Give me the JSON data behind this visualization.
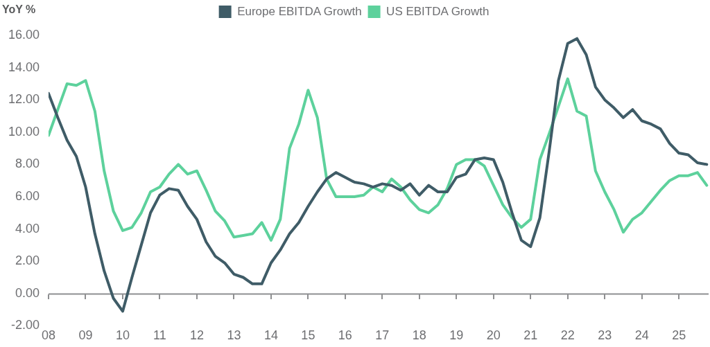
{
  "chart_data": {
    "type": "line",
    "ylabel": "YoY %",
    "x": [
      2008,
      2008.25,
      2008.5,
      2008.75,
      2009,
      2009.25,
      2009.5,
      2009.75,
      2010,
      2010.25,
      2010.5,
      2010.75,
      2011,
      2011.25,
      2011.5,
      2011.75,
      2012,
      2012.25,
      2012.5,
      2012.75,
      2013,
      2013.25,
      2013.5,
      2013.75,
      2014,
      2014.25,
      2014.5,
      2014.75,
      2015,
      2015.25,
      2015.5,
      2015.75,
      2016,
      2016.25,
      2016.5,
      2016.75,
      2017,
      2017.25,
      2017.5,
      2017.75,
      2018,
      2018.25,
      2018.5,
      2018.75,
      2019,
      2019.25,
      2019.5,
      2019.75,
      2020,
      2020.25,
      2020.5,
      2020.75,
      2021,
      2021.25,
      2021.5,
      2021.75,
      2022,
      2022.25,
      2022.5,
      2022.75,
      2023,
      2023.25,
      2023.5,
      2023.75,
      2024,
      2024.25,
      2024.5,
      2024.75,
      2025,
      2025.25,
      2025.5,
      2025.75
    ],
    "series": [
      {
        "name": "Europe EBITDA Growth",
        "color": "#3f5c67",
        "values": [
          12.4,
          10.9,
          9.5,
          8.5,
          6.6,
          3.7,
          1.4,
          -0.3,
          -1.1,
          1.0,
          3.0,
          5.0,
          6.1,
          6.5,
          6.4,
          5.4,
          4.6,
          3.2,
          2.3,
          1.9,
          1.2,
          1.0,
          0.6,
          0.6,
          1.9,
          2.7,
          3.7,
          4.4,
          5.4,
          6.3,
          7.1,
          7.5,
          7.2,
          6.9,
          6.8,
          6.6,
          6.8,
          6.7,
          6.4,
          6.8,
          6.1,
          6.7,
          6.3,
          6.3,
          7.2,
          7.4,
          8.3,
          8.4,
          8.3,
          6.9,
          5.0,
          3.3,
          2.9,
          4.7,
          8.8,
          13.2,
          15.5,
          15.8,
          14.8,
          12.8,
          12.0,
          11.5,
          10.9,
          11.4,
          10.7,
          10.5,
          10.2,
          9.3,
          8.7,
          8.6,
          8.1,
          8.0
        ]
      },
      {
        "name": "US EBITDA Growth",
        "color": "#5dd19c",
        "values": [
          9.8,
          11.4,
          13.0,
          12.9,
          13.2,
          11.3,
          7.6,
          5.1,
          3.9,
          4.1,
          5.0,
          6.3,
          6.6,
          7.4,
          8.0,
          7.4,
          7.6,
          6.4,
          5.1,
          4.5,
          3.5,
          3.6,
          3.7,
          4.4,
          3.3,
          4.6,
          9.0,
          10.5,
          12.6,
          10.9,
          7.1,
          6.0,
          6.0,
          6.0,
          6.1,
          6.6,
          6.3,
          7.1,
          6.6,
          5.8,
          5.2,
          5.0,
          5.5,
          6.5,
          8.0,
          8.3,
          8.3,
          7.9,
          6.7,
          5.5,
          4.7,
          4.1,
          4.6,
          8.3,
          9.9,
          11.6,
          13.3,
          11.3,
          11.0,
          7.6,
          6.3,
          5.2,
          3.8,
          4.6,
          5.0,
          5.7,
          6.4,
          7.0,
          7.3,
          7.3,
          7.5,
          6.7
        ]
      }
    ],
    "xlim": [
      2008,
      2025.8
    ],
    "xticks": [
      {
        "value": 2008,
        "label": "08"
      },
      {
        "value": 2009,
        "label": "09"
      },
      {
        "value": 2010,
        "label": "10"
      },
      {
        "value": 2011,
        "label": "11"
      },
      {
        "value": 2012,
        "label": "12"
      },
      {
        "value": 2013,
        "label": "13"
      },
      {
        "value": 2014,
        "label": "14"
      },
      {
        "value": 2015,
        "label": "15"
      },
      {
        "value": 2016,
        "label": "16"
      },
      {
        "value": 2017,
        "label": "17"
      },
      {
        "value": 2018,
        "label": "18"
      },
      {
        "value": 2019,
        "label": "19"
      },
      {
        "value": 2020,
        "label": "20"
      },
      {
        "value": 2021,
        "label": "21"
      },
      {
        "value": 2022,
        "label": "22"
      },
      {
        "value": 2023,
        "label": "23"
      },
      {
        "value": 2024,
        "label": "24"
      },
      {
        "value": 2025,
        "label": "25"
      }
    ],
    "ylim": [
      -2,
      16
    ],
    "yticks": [
      {
        "value": -2,
        "label": "-2.00"
      },
      {
        "value": 0,
        "label": "0.00"
      },
      {
        "value": 2,
        "label": "2.00"
      },
      {
        "value": 4,
        "label": "4.00"
      },
      {
        "value": 6,
        "label": "6.00"
      },
      {
        "value": 8,
        "label": "8.00"
      },
      {
        "value": 10,
        "label": "10.00"
      },
      {
        "value": 12,
        "label": "12.00"
      },
      {
        "value": 14,
        "label": "14.00"
      },
      {
        "value": 16,
        "label": "16.00"
      }
    ],
    "ref_lines": [
      {
        "axis": "y",
        "value": 0,
        "color": "#8e8f91"
      }
    ],
    "grid": false,
    "legend": "top"
  }
}
